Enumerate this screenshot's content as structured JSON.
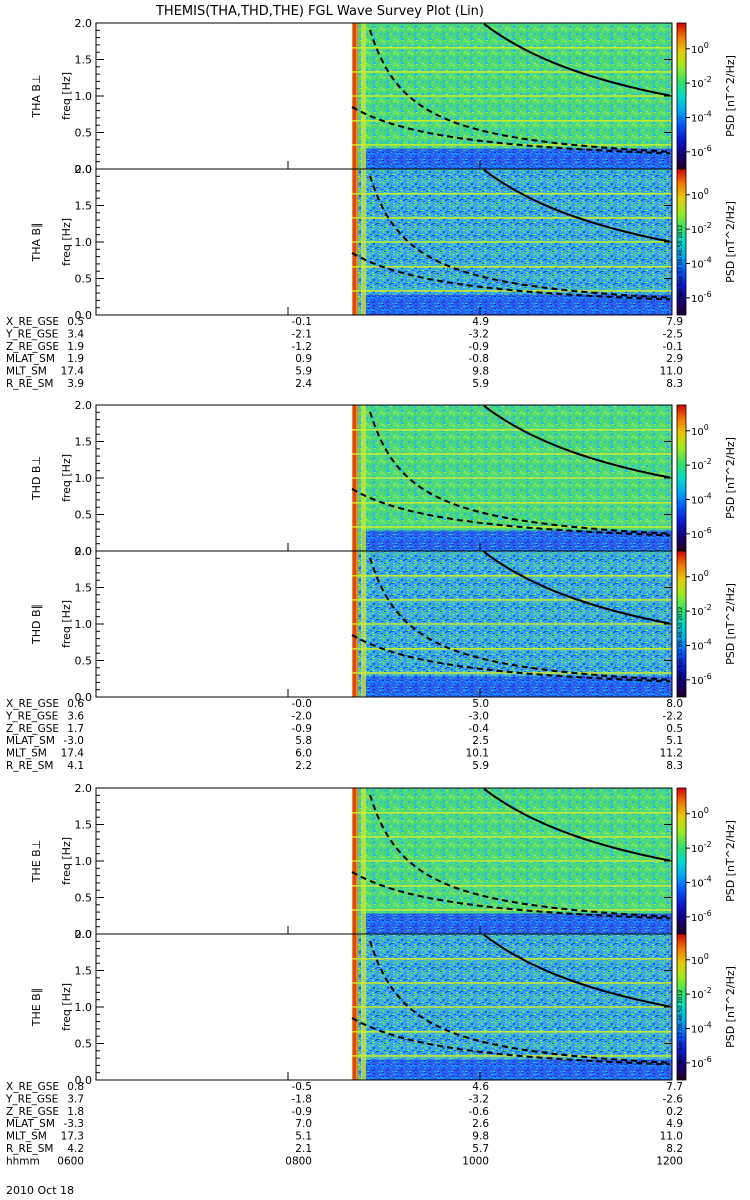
{
  "title": "THEMIS(THA,THD,THE) FGL Wave Survey Plot (Lin)",
  "date_label": "2010 Oct 18",
  "colorbar_ticks": [
    "10^0",
    "10^-2",
    "10^-4",
    "10^-6"
  ],
  "colorbar_label": "PSD [nT^2/Hz]",
  "stamp": "Mon Sep 17 06:46:50 2012",
  "chart_data": [
    {
      "type": "heatmap",
      "title": "THEMIS(THA,THD,THE) FGL Wave Survey Plot (Lin)",
      "group": "THA",
      "panels": [
        {
          "ylabel": "THA B⊥",
          "unit_label": "freq [Hz]"
        },
        {
          "ylabel": "THA B∥",
          "unit_label": "freq [Hz]"
        }
      ],
      "ylim": [
        0,
        2
      ],
      "yticks": [
        "0.0",
        "0.5",
        "1.0",
        "1.5",
        "2.0"
      ],
      "x_hhmm": [
        "0600",
        "0800",
        "1000",
        "1200"
      ],
      "data_start_hhmm": "0840",
      "colorbar_range_log10": [
        -7,
        1.5
      ],
      "ephemeris": [
        {
          "label": "X_RE_GSE",
          "values": [
            "0.5",
            "-0.1",
            "4.9",
            "7.9"
          ]
        },
        {
          "label": "Y_RE_GSE",
          "values": [
            "3.4",
            "-2.1",
            "-3.2",
            "-2.5"
          ]
        },
        {
          "label": "Z_RE_GSE",
          "values": [
            "1.9",
            "-1.2",
            "-0.9",
            "-0.1"
          ]
        },
        {
          "label": "MLAT_SM",
          "values": [
            "1.9",
            "0.9",
            "-0.8",
            "2.9"
          ]
        },
        {
          "label": "MLT_SM",
          "values": [
            "17.4",
            "5.9",
            "9.8",
            "11.0"
          ]
        },
        {
          "label": "R_RE_SM",
          "values": [
            "3.9",
            "2.4",
            "5.9",
            "8.3"
          ]
        }
      ]
    },
    {
      "type": "heatmap",
      "group": "THD",
      "panels": [
        {
          "ylabel": "THD B⊥",
          "unit_label": "freq [Hz]"
        },
        {
          "ylabel": "THD B∥",
          "unit_label": "freq [Hz]"
        }
      ],
      "ylim": [
        0,
        2
      ],
      "yticks": [
        "0.0",
        "0.5",
        "1.0",
        "1.5",
        "2.0"
      ],
      "x_hhmm": [
        "0600",
        "0800",
        "1000",
        "1200"
      ],
      "data_start_hhmm": "0840",
      "colorbar_range_log10": [
        -7,
        1.5
      ],
      "ephemeris": [
        {
          "label": "X_RE_GSE",
          "values": [
            "0.6",
            "-0.0",
            "5.0",
            "8.0"
          ]
        },
        {
          "label": "Y_RE_GSE",
          "values": [
            "3.6",
            "-2.0",
            "-3.0",
            "-2.2"
          ]
        },
        {
          "label": "Z_RE_GSE",
          "values": [
            "1.7",
            "-0.9",
            "-0.4",
            "0.5"
          ]
        },
        {
          "label": "MLAT_SM",
          "values": [
            "-3.0",
            "5.8",
            "2.5",
            "5.1"
          ]
        },
        {
          "label": "MLT_SM",
          "values": [
            "17.4",
            "6.0",
            "10.1",
            "11.2"
          ]
        },
        {
          "label": "R_RE_SM",
          "values": [
            "4.1",
            "2.2",
            "5.9",
            "8.3"
          ]
        }
      ]
    },
    {
      "type": "heatmap",
      "group": "THE",
      "panels": [
        {
          "ylabel": "THE B⊥",
          "unit_label": "freq [Hz]"
        },
        {
          "ylabel": "THE B∥",
          "unit_label": "freq [Hz]"
        }
      ],
      "ylim": [
        0,
        2
      ],
      "yticks": [
        "0.0",
        "0.5",
        "1.0",
        "1.5",
        "2.0"
      ],
      "x_hhmm": [
        "0600",
        "0800",
        "1000",
        "1200"
      ],
      "data_start_hhmm": "0840",
      "colorbar_range_log10": [
        -7,
        1.5
      ],
      "ephemeris": [
        {
          "label": "X_RE_GSE",
          "values": [
            "0.8",
            "-0.5",
            "4.6",
            "7.7"
          ]
        },
        {
          "label": "Y_RE_GSE",
          "values": [
            "3.7",
            "-1.8",
            "-3.2",
            "-2.6"
          ]
        },
        {
          "label": "Z_RE_GSE",
          "values": [
            "1.8",
            "-0.9",
            "-0.6",
            "0.2"
          ]
        },
        {
          "label": "MLAT_SM",
          "values": [
            "-3.3",
            "7.0",
            "2.6",
            "4.9"
          ]
        },
        {
          "label": "MLT_SM",
          "values": [
            "17.3",
            "5.1",
            "9.8",
            "11.0"
          ]
        },
        {
          "label": "R_RE_SM",
          "values": [
            "4.2",
            "2.1",
            "5.7",
            "8.2"
          ]
        },
        {
          "label": "hhmm",
          "values": [
            "0600",
            "0800",
            "1000",
            "1200"
          ]
        }
      ]
    }
  ]
}
